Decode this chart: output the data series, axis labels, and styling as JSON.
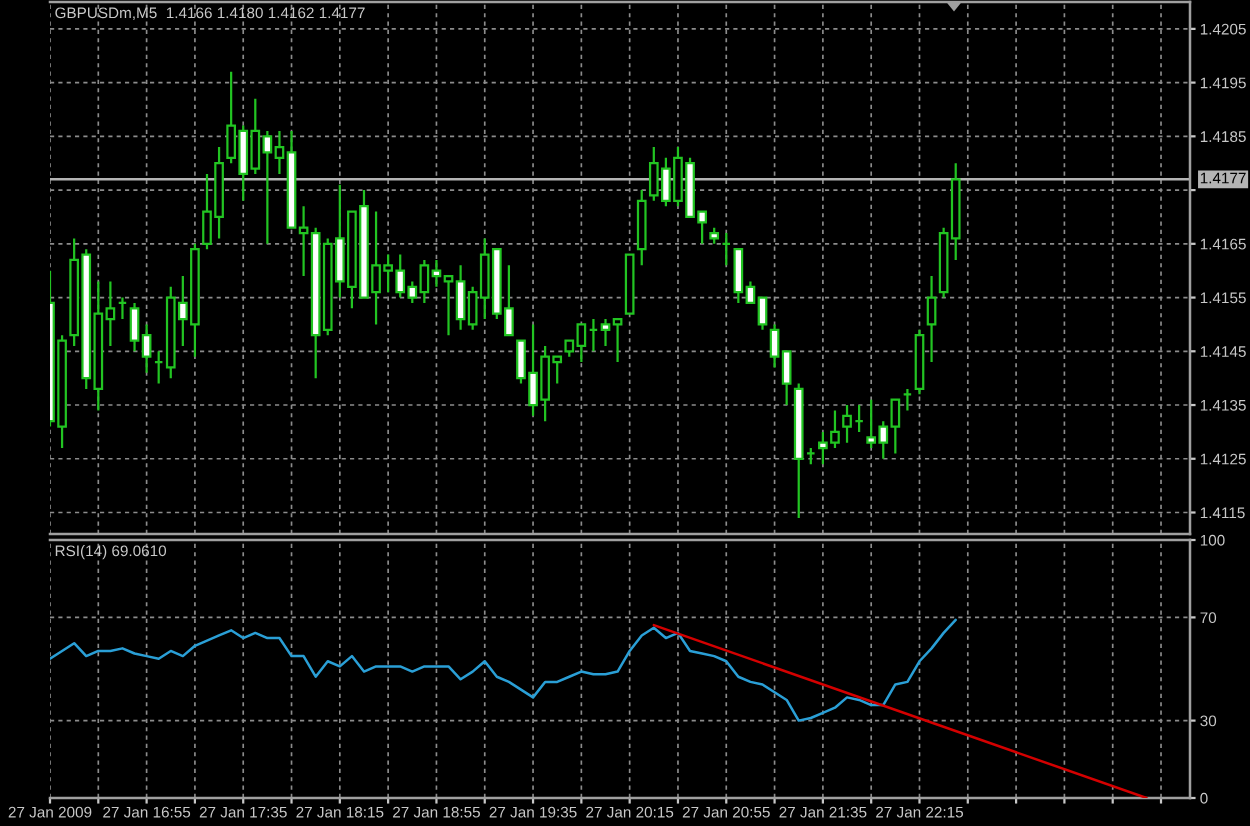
{
  "chart_data": [
    {
      "type": "candlestick",
      "title": "GBPUSDm,M5  1.4166 1.4180 1.4162 1.4177",
      "x": [
        "2009-01-27T16:15",
        "2009-01-27T16:20",
        "2009-01-27T16:25",
        "2009-01-27T16:30",
        "2009-01-27T16:35",
        "2009-01-27T16:40",
        "2009-01-27T16:45",
        "2009-01-27T16:50",
        "2009-01-27T16:55",
        "2009-01-27T17:00",
        "2009-01-27T17:05",
        "2009-01-27T17:10",
        "2009-01-27T17:15",
        "2009-01-27T17:20",
        "2009-01-27T17:25",
        "2009-01-27T17:30",
        "2009-01-27T17:35",
        "2009-01-27T17:40",
        "2009-01-27T17:45",
        "2009-01-27T17:50",
        "2009-01-27T17:55",
        "2009-01-27T18:00",
        "2009-01-27T18:05",
        "2009-01-27T18:10",
        "2009-01-27T18:15",
        "2009-01-27T18:20",
        "2009-01-27T18:25",
        "2009-01-27T18:30",
        "2009-01-27T18:35",
        "2009-01-27T18:40",
        "2009-01-27T18:45",
        "2009-01-27T18:50",
        "2009-01-27T18:55",
        "2009-01-27T19:00",
        "2009-01-27T19:05",
        "2009-01-27T19:10",
        "2009-01-27T19:15",
        "2009-01-27T19:20",
        "2009-01-27T19:25",
        "2009-01-27T19:30",
        "2009-01-27T19:35",
        "2009-01-27T19:40",
        "2009-01-27T19:45",
        "2009-01-27T19:50",
        "2009-01-27T19:55",
        "2009-01-27T20:00",
        "2009-01-27T20:05",
        "2009-01-27T20:10",
        "2009-01-27T20:15",
        "2009-01-27T20:20",
        "2009-01-27T20:25",
        "2009-01-27T20:30",
        "2009-01-27T20:35",
        "2009-01-27T20:40",
        "2009-01-27T20:45",
        "2009-01-27T20:50",
        "2009-01-27T20:55",
        "2009-01-27T21:00",
        "2009-01-27T21:05",
        "2009-01-27T21:10",
        "2009-01-27T21:15",
        "2009-01-27T21:20",
        "2009-01-27T21:25",
        "2009-01-27T21:30",
        "2009-01-27T21:35",
        "2009-01-27T21:40",
        "2009-01-27T21:45",
        "2009-01-27T21:50",
        "2009-01-27T21:55",
        "2009-01-27T22:00",
        "2009-01-27T22:05",
        "2009-01-27T22:10",
        "2009-01-27T22:15",
        "2009-01-27T22:20",
        "2009-01-27T22:25",
        "2009-01-27T22:30"
      ],
      "ohlc": [
        [
          1.4154,
          1.416,
          1.4131,
          1.4132
        ],
        [
          1.4131,
          1.4148,
          1.4127,
          1.4147
        ],
        [
          1.4148,
          1.4166,
          1.4146,
          1.4162
        ],
        [
          1.4163,
          1.4164,
          1.4138,
          1.414
        ],
        [
          1.4138,
          1.4158,
          1.4134,
          1.4152
        ],
        [
          1.4151,
          1.4158,
          1.4146,
          1.4153
        ],
        [
          1.4154,
          1.4155,
          1.4151,
          1.4154
        ],
        [
          1.4153,
          1.4154,
          1.4145,
          1.4147
        ],
        [
          1.4148,
          1.415,
          1.4141,
          1.4144
        ],
        [
          1.4143,
          1.4145,
          1.4139,
          1.4143
        ],
        [
          1.4142,
          1.4157,
          1.414,
          1.4155
        ],
        [
          1.4154,
          1.4159,
          1.4146,
          1.4151
        ],
        [
          1.415,
          1.4165,
          1.4144,
          1.4164
        ],
        [
          1.4165,
          1.4178,
          1.4164,
          1.4171
        ],
        [
          1.417,
          1.4183,
          1.4166,
          1.418
        ],
        [
          1.4181,
          1.4197,
          1.418,
          1.4187
        ],
        [
          1.4186,
          1.4187,
          1.4173,
          1.4178
        ],
        [
          1.4179,
          1.4192,
          1.4178,
          1.4186
        ],
        [
          1.4185,
          1.4186,
          1.4165,
          1.4182
        ],
        [
          1.4181,
          1.4186,
          1.4178,
          1.4183
        ],
        [
          1.4182,
          1.4186,
          1.4168,
          1.4168
        ],
        [
          1.4167,
          1.4172,
          1.4159,
          1.4168
        ],
        [
          1.4167,
          1.4168,
          1.414,
          1.4148
        ],
        [
          1.4149,
          1.4166,
          1.4148,
          1.4165
        ],
        [
          1.4166,
          1.4176,
          1.4155,
          1.4158
        ],
        [
          1.4157,
          1.4171,
          1.4153,
          1.4171
        ],
        [
          1.4172,
          1.4175,
          1.4155,
          1.4155
        ],
        [
          1.4156,
          1.4171,
          1.415,
          1.4161
        ],
        [
          1.416,
          1.4163,
          1.4156,
          1.4161
        ],
        [
          1.416,
          1.4163,
          1.4155,
          1.4156
        ],
        [
          1.4157,
          1.4158,
          1.4154,
          1.4155
        ],
        [
          1.4156,
          1.4162,
          1.4154,
          1.4161
        ],
        [
          1.416,
          1.4162,
          1.4157,
          1.4159
        ],
        [
          1.4158,
          1.4159,
          1.4148,
          1.4159
        ],
        [
          1.4158,
          1.4161,
          1.4149,
          1.4151
        ],
        [
          1.415,
          1.4157,
          1.4149,
          1.4156
        ],
        [
          1.4155,
          1.4166,
          1.4151,
          1.4163
        ],
        [
          1.4164,
          1.4164,
          1.4151,
          1.4152
        ],
        [
          1.4153,
          1.4161,
          1.4148,
          1.4148
        ],
        [
          1.4147,
          1.4147,
          1.4139,
          1.414
        ],
        [
          1.4141,
          1.415,
          1.4133,
          1.4135
        ],
        [
          1.4136,
          1.4146,
          1.4132,
          1.4144
        ],
        [
          1.4143,
          1.4144,
          1.4139,
          1.4144
        ],
        [
          1.4145,
          1.4147,
          1.4144,
          1.4147
        ],
        [
          1.4146,
          1.415,
          1.4143,
          1.415
        ],
        [
          1.4149,
          1.4151,
          1.4145,
          1.4149
        ],
        [
          1.415,
          1.4151,
          1.4146,
          1.4149
        ],
        [
          1.415,
          1.4151,
          1.4143,
          1.4151
        ],
        [
          1.4152,
          1.4163,
          1.4152,
          1.4163
        ],
        [
          1.4164,
          1.4175,
          1.4161,
          1.4173
        ],
        [
          1.4174,
          1.4183,
          1.4173,
          1.418
        ],
        [
          1.4179,
          1.4181,
          1.4172,
          1.4173
        ],
        [
          1.4173,
          1.4183,
          1.4172,
          1.4181
        ],
        [
          1.418,
          1.4181,
          1.417,
          1.417
        ],
        [
          1.4171,
          1.4171,
          1.4165,
          1.4169
        ],
        [
          1.4167,
          1.4168,
          1.4165,
          1.4166
        ],
        [
          1.4165,
          1.4167,
          1.4161,
          1.4165
        ],
        [
          1.4164,
          1.4164,
          1.4154,
          1.4156
        ],
        [
          1.4157,
          1.4158,
          1.4154,
          1.4154
        ],
        [
          1.4155,
          1.4155,
          1.4149,
          1.415
        ],
        [
          1.4149,
          1.415,
          1.4142,
          1.4144
        ],
        [
          1.4145,
          1.4145,
          1.4135,
          1.4139
        ],
        [
          1.4138,
          1.4139,
          1.4114,
          1.4125
        ],
        [
          1.4126,
          1.4127,
          1.4124,
          1.4126
        ],
        [
          1.4128,
          1.413,
          1.4124,
          1.4127
        ],
        [
          1.4128,
          1.4134,
          1.4127,
          1.413
        ],
        [
          1.4131,
          1.4135,
          1.4128,
          1.4133
        ],
        [
          1.4132,
          1.4135,
          1.413,
          1.4132
        ],
        [
          1.4129,
          1.4136,
          1.4127,
          1.4128
        ],
        [
          1.4131,
          1.4132,
          1.4125,
          1.4128
        ],
        [
          1.4131,
          1.4136,
          1.4126,
          1.4136
        ],
        [
          1.4137,
          1.4138,
          1.4134,
          1.4137
        ],
        [
          1.4138,
          1.4149,
          1.4137,
          1.4148
        ],
        [
          1.415,
          1.4159,
          1.4143,
          1.4155
        ],
        [
          1.4156,
          1.4168,
          1.4155,
          1.4167
        ],
        [
          1.4166,
          1.418,
          1.4162,
          1.4177
        ]
      ],
      "color": "#22c422",
      "colors": [
        "#ffffff",
        "#000000",
        "#000000",
        "#ffffff",
        "#000000",
        "#000000",
        "#22c422",
        "#ffffff",
        "#ffffff",
        "#22c422",
        "#000000",
        "#ffffff",
        "#000000",
        "#000000",
        "#000000",
        "#000000",
        "#ffffff",
        "#000000",
        "#ffffff",
        "#000000",
        "#ffffff",
        "#000000",
        "#ffffff",
        "#000000",
        "#ffffff",
        "#000000",
        "#ffffff",
        "#000000",
        "#000000",
        "#ffffff",
        "#ffffff",
        "#000000",
        "#ffffff",
        "#000000",
        "#ffffff",
        "#000000",
        "#000000",
        "#ffffff",
        "#ffffff",
        "#ffffff",
        "#ffffff",
        "#000000",
        "#000000",
        "#000000",
        "#000000",
        "#22c422",
        "#ffffff",
        "#000000",
        "#000000",
        "#000000",
        "#000000",
        "#ffffff",
        "#000000",
        "#ffffff",
        "#ffffff",
        "#ffffff",
        "#22c422",
        "#ffffff",
        "#ffffff",
        "#ffffff",
        "#ffffff",
        "#ffffff",
        "#ffffff",
        "#22c422",
        "#ffffff",
        "#000000",
        "#000000",
        "#22c422",
        "#ffffff",
        "#ffffff",
        "#000000",
        "#22c422",
        "#000000",
        "#000000",
        "#000000",
        "#000000"
      ],
      "xlim": [
        "2009-01-27T16:15",
        "2009-01-28T00:07"
      ],
      "xticks": [
        {
          "value": "2009-01-27T16:15",
          "label": null
        },
        {
          "value": "2009-01-27T16:35",
          "label": null
        },
        {
          "value": "2009-01-27T16:55",
          "label": null
        },
        {
          "value": "2009-01-27T17:15",
          "label": null
        },
        {
          "value": "2009-01-27T17:35",
          "label": null
        },
        {
          "value": "2009-01-27T17:55",
          "label": null
        },
        {
          "value": "2009-01-27T18:15",
          "label": null
        },
        {
          "value": "2009-01-27T18:35",
          "label": null
        },
        {
          "value": "2009-01-27T18:55",
          "label": null
        },
        {
          "value": "2009-01-27T19:15",
          "label": null
        },
        {
          "value": "2009-01-27T19:35",
          "label": null
        },
        {
          "value": "2009-01-27T19:55",
          "label": null
        },
        {
          "value": "2009-01-27T20:15",
          "label": null
        },
        {
          "value": "2009-01-27T20:35",
          "label": null
        },
        {
          "value": "2009-01-27T20:55",
          "label": null
        },
        {
          "value": "2009-01-27T21:15",
          "label": null
        },
        {
          "value": "2009-01-27T21:35",
          "label": null
        },
        {
          "value": "2009-01-27T21:55",
          "label": null
        },
        {
          "value": "2009-01-27T22:15",
          "label": null
        },
        {
          "value": "2009-01-27T22:35",
          "label": null
        },
        {
          "value": "2009-01-27T22:55",
          "label": null
        },
        {
          "value": "2009-01-27T23:15",
          "label": null
        },
        {
          "value": "2009-01-27T23:35",
          "label": null
        },
        {
          "value": "2009-01-27T23:55",
          "label": null
        }
      ],
      "ylim": [
        1.4111,
        1.421
      ],
      "yticks": [
        1.4115,
        1.4125,
        1.4135,
        1.4145,
        1.4155,
        1.4165,
        {
          "value": 1.4175,
          "label": null
        },
        1.4185,
        1.4195,
        1.4205
      ],
      "grid": true,
      "tick_labels": "y",
      "ref_lines": [
        {
          "axis": "y",
          "value": 1.4177,
          "label": "1.4177",
          "color": "#b4b4b4"
        }
      ]
    },
    {
      "type": "line",
      "title": "RSI(14) 69.0610",
      "x": [
        "2009-01-27T16:15",
        "2009-01-27T16:20",
        "2009-01-27T16:25",
        "2009-01-27T16:30",
        "2009-01-27T16:35",
        "2009-01-27T16:40",
        "2009-01-27T16:45",
        "2009-01-27T16:50",
        "2009-01-27T16:55",
        "2009-01-27T17:00",
        "2009-01-27T17:05",
        "2009-01-27T17:10",
        "2009-01-27T17:15",
        "2009-01-27T17:20",
        "2009-01-27T17:25",
        "2009-01-27T17:30",
        "2009-01-27T17:35",
        "2009-01-27T17:40",
        "2009-01-27T17:45",
        "2009-01-27T17:50",
        "2009-01-27T17:55",
        "2009-01-27T18:00",
        "2009-01-27T18:05",
        "2009-01-27T18:10",
        "2009-01-27T18:15",
        "2009-01-27T18:20",
        "2009-01-27T18:25",
        "2009-01-27T18:30",
        "2009-01-27T18:35",
        "2009-01-27T18:40",
        "2009-01-27T18:45",
        "2009-01-27T18:50",
        "2009-01-27T18:55",
        "2009-01-27T19:00",
        "2009-01-27T19:05",
        "2009-01-27T19:10",
        "2009-01-27T19:15",
        "2009-01-27T19:20",
        "2009-01-27T19:25",
        "2009-01-27T19:30",
        "2009-01-27T19:35",
        "2009-01-27T19:40",
        "2009-01-27T19:45",
        "2009-01-27T19:50",
        "2009-01-27T19:55",
        "2009-01-27T20:00",
        "2009-01-27T20:05",
        "2009-01-27T20:10",
        "2009-01-27T20:15",
        "2009-01-27T20:20",
        "2009-01-27T20:25",
        "2009-01-27T20:30",
        "2009-01-27T20:35",
        "2009-01-27T20:40",
        "2009-01-27T20:45",
        "2009-01-27T20:50",
        "2009-01-27T20:55",
        "2009-01-27T21:00",
        "2009-01-27T21:05",
        "2009-01-27T21:10",
        "2009-01-27T21:15",
        "2009-01-27T21:20",
        "2009-01-27T21:25",
        "2009-01-27T21:30",
        "2009-01-27T21:35",
        "2009-01-27T21:40",
        "2009-01-27T21:45",
        "2009-01-27T21:50",
        "2009-01-27T21:55",
        "2009-01-27T22:00",
        "2009-01-27T22:05",
        "2009-01-27T22:10",
        "2009-01-27T22:15",
        "2009-01-27T22:20",
        "2009-01-27T22:25",
        "2009-01-27T22:30"
      ],
      "series": [
        {
          "color": "#2a9fd6",
          "values": [
            54,
            57,
            60,
            55,
            57,
            57,
            58,
            56,
            55,
            54,
            57,
            55,
            59,
            61,
            63,
            65,
            62,
            64,
            62,
            62,
            55,
            55,
            47,
            53,
            51,
            55,
            49,
            51,
            51,
            51,
            49,
            51,
            51,
            51,
            46,
            49,
            53,
            47,
            45,
            42,
            39,
            45,
            45,
            47,
            49,
            48,
            48,
            49,
            57,
            63,
            66,
            62,
            64,
            57,
            56,
            55,
            53,
            47,
            45,
            44,
            41,
            38,
            30,
            31,
            33,
            35,
            39,
            38,
            36,
            36,
            44,
            45,
            53,
            58,
            64,
            69.061
          ]
        },
        {
          "type": "line",
          "x": [
            "2009-01-27T20:25",
            "2009-01-27T23:49"
          ],
          "color": "#d40000",
          "values": [
            67,
            0
          ]
        }
      ],
      "xlim": [
        "2009-01-27T16:15",
        "2009-01-28T00:07"
      ],
      "xticks": [
        {
          "value": "2009-01-27T16:15",
          "label": "27 Jan 2009"
        },
        {
          "value": "2009-01-27T16:35",
          "label": null
        },
        {
          "value": "2009-01-27T16:55",
          "label": "27 Jan 16:55"
        },
        {
          "value": "2009-01-27T17:15",
          "label": null
        },
        {
          "value": "2009-01-27T17:35",
          "label": "27 Jan 17:35"
        },
        {
          "value": "2009-01-27T17:55",
          "label": null
        },
        {
          "value": "2009-01-27T18:15",
          "label": "27 Jan 18:15"
        },
        {
          "value": "2009-01-27T18:35",
          "label": null
        },
        {
          "value": "2009-01-27T18:55",
          "label": "27 Jan 18:55"
        },
        {
          "value": "2009-01-27T19:15",
          "label": null
        },
        {
          "value": "2009-01-27T19:35",
          "label": "27 Jan 19:35"
        },
        {
          "value": "2009-01-27T19:55",
          "label": null
        },
        {
          "value": "2009-01-27T20:15",
          "label": "27 Jan 20:15"
        },
        {
          "value": "2009-01-27T20:35",
          "label": null
        },
        {
          "value": "2009-01-27T20:55",
          "label": "27 Jan 20:55"
        },
        {
          "value": "2009-01-27T21:15",
          "label": null
        },
        {
          "value": "2009-01-27T21:35",
          "label": "27 Jan 21:35"
        },
        {
          "value": "2009-01-27T21:55",
          "label": null
        },
        {
          "value": "2009-01-27T22:15",
          "label": "27 Jan 22:15"
        },
        {
          "value": "2009-01-27T22:35",
          "label": null
        },
        {
          "value": "2009-01-27T22:55",
          "label": null
        },
        {
          "value": "2009-01-27T23:15",
          "label": null
        },
        {
          "value": "2009-01-27T23:35",
          "label": null
        },
        {
          "value": "2009-01-27T23:55",
          "label": null
        }
      ],
      "ylim": [
        0,
        100
      ],
      "yticks": [
        0,
        30,
        70,
        100
      ],
      "grid": true
    }
  ]
}
